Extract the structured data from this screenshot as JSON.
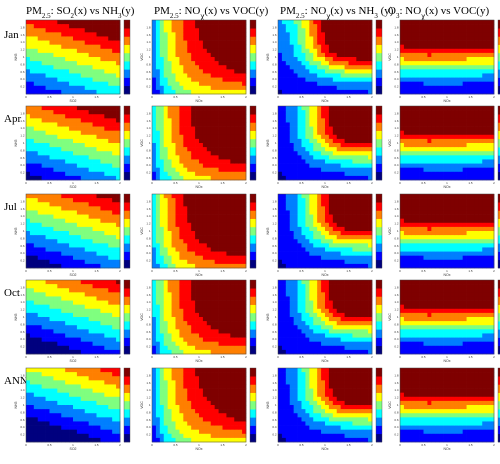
{
  "figure": {
    "column_titles": [
      "PM2.5: SO2(x) vs NH3(y)",
      "PM2.5: NOx(x) vs VOC(y)",
      "PM2.5: NOx(x) vs NH3 (y)",
      "O3: NOx(x) vs VOC(y)"
    ],
    "row_labels": [
      "Jan",
      "Apr",
      "Jul",
      "Oct",
      "ANN"
    ]
  },
  "chart_data": {
    "type": "heatmap",
    "layout": "5 rows x 4 columns of filled contour panels, each with a color bar",
    "colormap": [
      "#00007f",
      "#0000ff",
      "#007fff",
      "#00ffff",
      "#7fff7f",
      "#ffff00",
      "#ff7f00",
      "#ff0000",
      "#7f0000"
    ],
    "x_ticks": [
      "0",
      "0.5",
      "1",
      "1.5",
      "2"
    ],
    "y_ticks": [
      "0.2",
      "0.4",
      "0.6",
      "0.8",
      "1",
      "1.2",
      "1.4",
      "1.6",
      "1.8"
    ],
    "columns": [
      {
        "xlabel": "SO2",
        "ylabel": "NH3"
      },
      {
        "xlabel": "NOx",
        "ylabel": "VOC"
      },
      {
        "xlabel": "NOx",
        "ylabel": "NH3"
      },
      {
        "xlabel": "NOx",
        "ylabel": "VOC"
      }
    ]
  }
}
